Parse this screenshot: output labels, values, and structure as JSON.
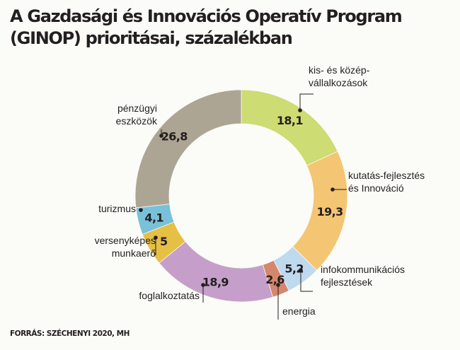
{
  "chart_data": {
    "type": "pie",
    "variant": "donut",
    "title": "A Gazdasági és Innovációs Operatív Program (GINOP) prioritásai, százalékban",
    "source": "FORRÁS: SZÉCHENYI 2020, MH",
    "start_angle_deg": 0,
    "direction": "clockwise",
    "slices": [
      {
        "value": 18.1,
        "value_label": "18,1",
        "label_lines": [
          "kis- és közép-",
          "vállalkozások"
        ],
        "color": "#cddc73"
      },
      {
        "value": 19.3,
        "value_label": "19,3",
        "label_lines": [
          "kutatás-fejlesztés",
          "és Innováció"
        ],
        "color": "#f4c572"
      },
      {
        "value": 5.2,
        "value_label": "5,2",
        "label_lines": [
          "infokommunikációs",
          "fejlesztések"
        ],
        "color": "#bfd9ef"
      },
      {
        "value": 2.6,
        "value_label": "2,6",
        "label_lines": [
          "energia"
        ],
        "color": "#d4876c"
      },
      {
        "value": 18.9,
        "value_label": "18,9",
        "label_lines": [
          "foglalkoztatás"
        ],
        "color": "#c59fc9"
      },
      {
        "value": 5,
        "value_label": "5",
        "label_lines": [
          "versenyképes",
          "munkaerő"
        ],
        "color": "#e6bf45"
      },
      {
        "value": 4.1,
        "value_label": "4,1",
        "label_lines": [
          "turizmus"
        ],
        "color": "#78c1d9"
      },
      {
        "value": 26.8,
        "value_label": "26,8",
        "label_lines": [
          "pénzügyi",
          "eszközök"
        ],
        "color": "#ada594"
      }
    ]
  }
}
